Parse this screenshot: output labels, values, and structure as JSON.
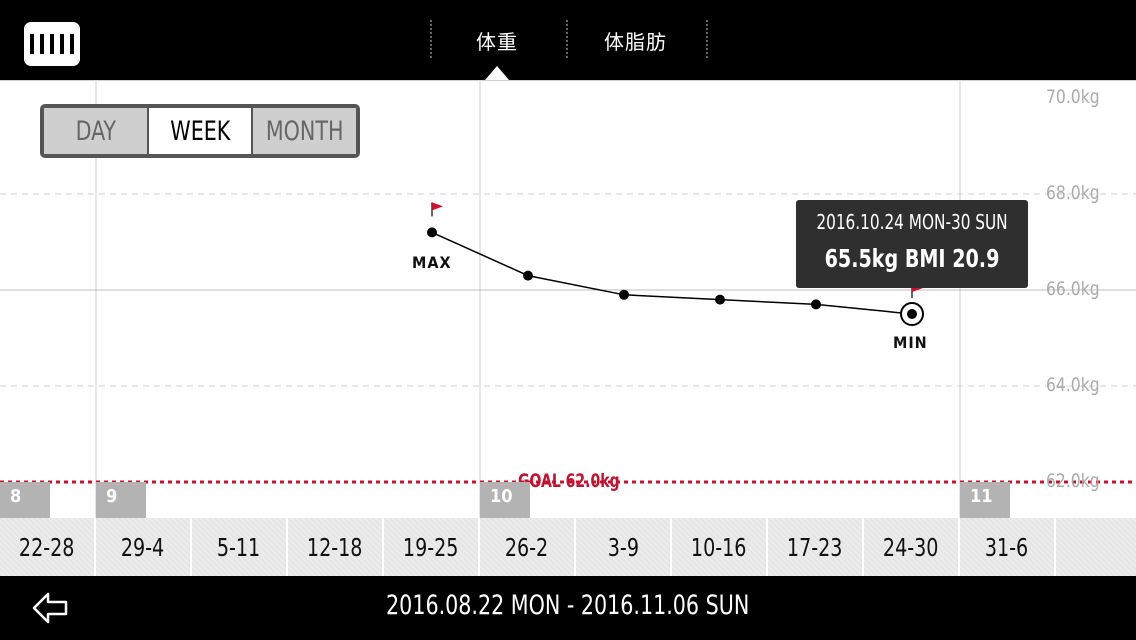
{
  "header": {
    "tabs": [
      {
        "label": "体重",
        "active": true
      },
      {
        "label": "体脂肪",
        "active": false
      }
    ]
  },
  "view_toggle": {
    "options": [
      "DAY",
      "WEEK",
      "MONTH"
    ],
    "selected": "WEEK"
  },
  "colors": {
    "goal": "#c8102e",
    "flag": "#c8102e",
    "header_bg": "#000000",
    "tooltip_bg": "#2f2f2f"
  },
  "chart_data": {
    "type": "line",
    "y_tick_labels": [
      "70.0kg",
      "68.0kg",
      "66.0kg",
      "64.0kg",
      "62.0kg"
    ],
    "ylim": [
      62.0,
      70.0
    ],
    "categories": [
      "22-28",
      "29-4",
      "5-11",
      "12-18",
      "19-25",
      "26-2",
      "3-9",
      "10-16",
      "17-23",
      "24-30",
      "31-6"
    ],
    "series": [
      {
        "values": [
          null,
          null,
          null,
          null,
          67.2,
          66.3,
          65.9,
          65.8,
          65.7,
          65.5,
          null
        ]
      }
    ],
    "max_label": "MAX",
    "min_label": "MIN",
    "goal_value": 62.0,
    "goal_label": "GOAL 62.0kg",
    "month_markers": [
      {
        "label": "8",
        "week_index": 0
      },
      {
        "label": "9",
        "week_index": 1
      },
      {
        "label": "10",
        "week_index": 5
      },
      {
        "label": "11",
        "week_index": 10
      }
    ]
  },
  "tooltip": {
    "line1": "2016.10.24 MON-30 SUN",
    "line2": "65.5kg  BMI 20.9"
  },
  "footer": {
    "date_range": "2016.08.22 MON - 2016.11.06 SUN"
  }
}
